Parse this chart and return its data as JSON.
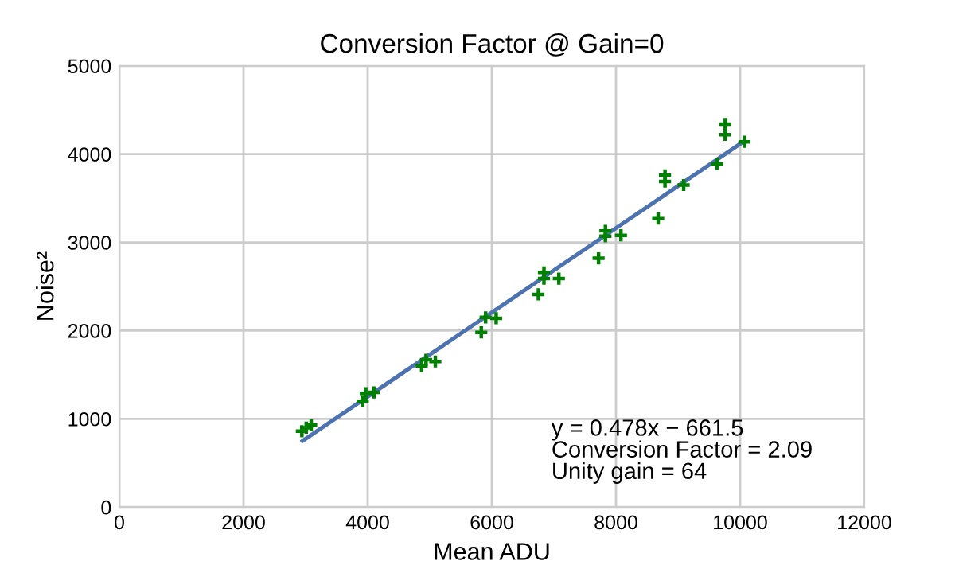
{
  "chart_data": {
    "type": "scatter",
    "title": "Conversion Factor @ Gain=0",
    "xlabel": "Mean ADU",
    "ylabel": "Noise²",
    "xlim": [
      0,
      12000
    ],
    "xticks": [
      0,
      2000,
      4000,
      6000,
      8000,
      10000,
      12000
    ],
    "ylim": [
      0,
      5000
    ],
    "yticks": [
      0,
      1000,
      2000,
      3000,
      4000,
      5000
    ],
    "grid": true,
    "legend": false,
    "series": [
      {
        "color": "#008000",
        "marker": "cross",
        "x": [
          2940,
          3010,
          3090,
          3920,
          3970,
          4100,
          4870,
          4940,
          5090,
          5830,
          5900,
          6070,
          6750,
          6840,
          6840,
          7080,
          7720,
          7830,
          7830,
          8080,
          8680,
          8790,
          8790,
          9090,
          9630,
          9760,
          9760,
          10070
        ],
        "values": [
          860,
          900,
          930,
          1200,
          1290,
          1300,
          1600,
          1670,
          1650,
          1980,
          2150,
          2140,
          2410,
          2660,
          2590,
          2590,
          2820,
          3130,
          3070,
          3080,
          3270,
          3760,
          3690,
          3650,
          3890,
          4340,
          4220,
          4140
        ]
      },
      {
        "type": "line",
        "color": "#4c72b0",
        "marker": "none",
        "line_style": "solid",
        "x": [
          2950,
          10070
        ],
        "values": [
          750,
          4150
        ]
      }
    ],
    "annotations": [
      "y = 0.478x − 661.5\nConversion Factor = 2.09\nUnity gain = 64"
    ]
  }
}
